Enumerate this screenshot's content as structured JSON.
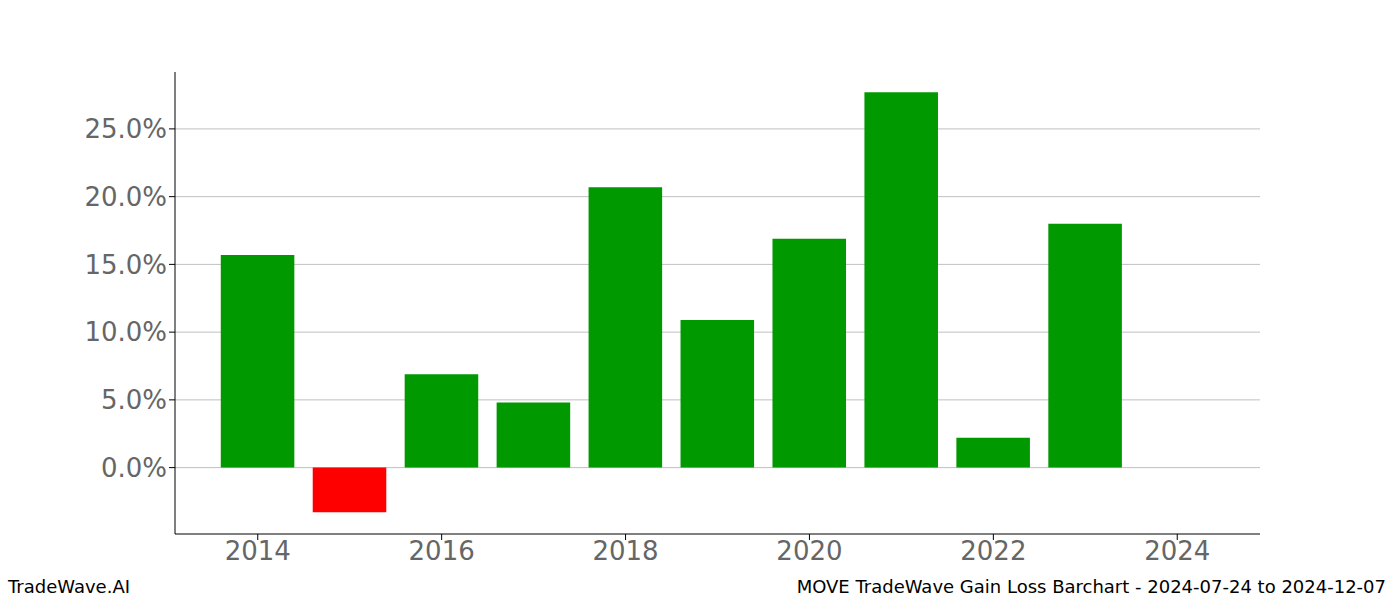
{
  "chart_data": {
    "type": "bar",
    "title": "MOVE TradeWave Gain Loss Barchart - 2024-07-24 to 2024-12-07",
    "subtitle": "TradeWave.AI",
    "x": [
      2014,
      2015,
      2016,
      2017,
      2018,
      2019,
      2020,
      2021,
      2022,
      2023
    ],
    "values": [
      15.7,
      -3.3,
      6.9,
      4.8,
      20.7,
      10.9,
      16.9,
      27.7,
      2.2,
      18.0
    ],
    "colors": [
      "#009900",
      "#ff0000",
      "#009900",
      "#009900",
      "#009900",
      "#009900",
      "#009900",
      "#009900",
      "#009900",
      "#009900"
    ],
    "xlim": [
      2013.1,
      2024.9
    ],
    "xticks": [
      2014,
      2016,
      2018,
      2020,
      2022,
      2024
    ],
    "ylim": [
      -4.9,
      29.2
    ],
    "yticks": [
      {
        "value": 0,
        "label": "0.0%"
      },
      {
        "value": 5,
        "label": "5.0%"
      },
      {
        "value": 10,
        "label": "10.0%"
      },
      {
        "value": 15,
        "label": "15.0%"
      },
      {
        "value": 20,
        "label": "20.0%"
      },
      {
        "value": 25,
        "label": "25.0%"
      }
    ],
    "grid": true
  }
}
